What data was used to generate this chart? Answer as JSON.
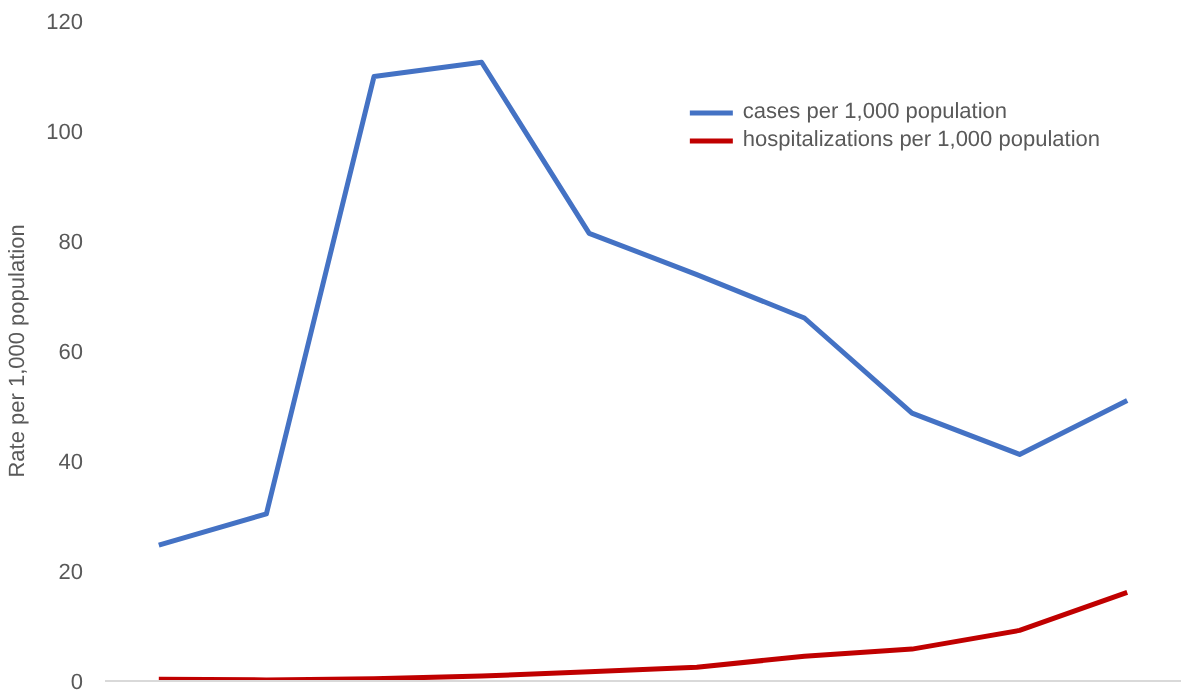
{
  "chart_data": {
    "type": "line",
    "ylabel": "Rate per 1,000 population",
    "categories": [
      null,
      null,
      null,
      null,
      null,
      null,
      null,
      null,
      null,
      null
    ],
    "series": [
      {
        "name": "cases per 1,000 population",
        "color": "#4472c4",
        "values": [
          24.7,
          30.4,
          109.9,
          112.5,
          81.4,
          73.9,
          66,
          48.7,
          41.2,
          51
        ]
      },
      {
        "name": "hospitalizations per 1,000 population",
        "color": "#c00000",
        "values": [
          0.3,
          0.2,
          0.4,
          0.9,
          1.7,
          2.5,
          4.5,
          5.8,
          9.2,
          16.1
        ]
      }
    ],
    "ylim": [
      0,
      120
    ],
    "yticks": [
      0,
      20,
      40,
      60,
      80,
      100,
      120
    ],
    "grid": false,
    "legend": "top right",
    "marker": "none",
    "line_style": "solid"
  }
}
